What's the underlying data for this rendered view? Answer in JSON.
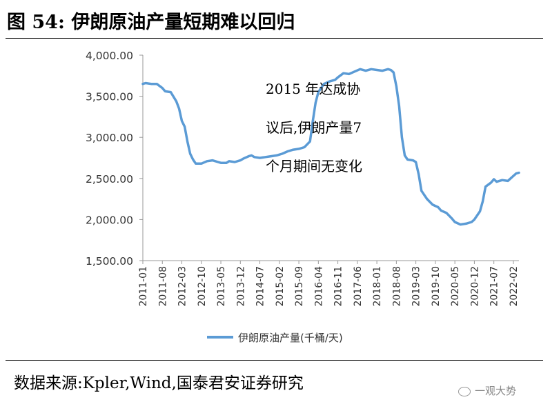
{
  "header": {
    "title": "图 54:  伊朗原油产量短期难以回归"
  },
  "footer": {
    "source": "数据来源:Kpler,Wind,国泰君安证券研究",
    "watermark": "一观大势",
    "watermark_icon": "wechat-icon"
  },
  "annotation": [
    "2015  年达成协",
    "议后,伊朗产量7",
    "个月期间无变化"
  ],
  "chart_data": {
    "type": "line",
    "color": "#5b9bd5",
    "ylim": [
      1500,
      4000
    ],
    "yticks": [
      1500,
      2000,
      2500,
      3000,
      3500,
      4000
    ],
    "ytick_labels": [
      "1,500.00",
      "2,000.00",
      "2,500.00",
      "3,000.00",
      "3,500.00",
      "4,000.00"
    ],
    "xtick_labels": [
      "2011-01",
      "2011-08",
      "2012-03",
      "2012-10",
      "2013-05",
      "2013-12",
      "2014-07",
      "2015-02",
      "2015-09",
      "2016-04",
      "2016-11",
      "2017-06",
      "2018-01",
      "2018-08",
      "2019-03",
      "2019-10",
      "2020-05",
      "2020-12",
      "2021-07",
      "2022-02"
    ],
    "x_start": "2011-01",
    "x_end": "2022-04",
    "series": [
      {
        "name": "伊朗原油产量(千桶/天)",
        "points": [
          [
            "2011-01",
            3650
          ],
          [
            "2011-02",
            3660
          ],
          [
            "2011-04",
            3650
          ],
          [
            "2011-06",
            3650
          ],
          [
            "2011-08",
            3600
          ],
          [
            "2011-09",
            3560
          ],
          [
            "2011-11",
            3550
          ],
          [
            "2012-01",
            3440
          ],
          [
            "2012-02",
            3350
          ],
          [
            "2012-03",
            3200
          ],
          [
            "2012-04",
            3130
          ],
          [
            "2012-05",
            2950
          ],
          [
            "2012-06",
            2800
          ],
          [
            "2012-07",
            2730
          ],
          [
            "2012-08",
            2680
          ],
          [
            "2012-10",
            2680
          ],
          [
            "2012-12",
            2710
          ],
          [
            "2013-02",
            2720
          ],
          [
            "2013-04",
            2700
          ],
          [
            "2013-05",
            2690
          ],
          [
            "2013-07",
            2690
          ],
          [
            "2013-08",
            2710
          ],
          [
            "2013-10",
            2700
          ],
          [
            "2013-12",
            2720
          ],
          [
            "2014-01",
            2740
          ],
          [
            "2014-03",
            2770
          ],
          [
            "2014-04",
            2780
          ],
          [
            "2014-05",
            2760
          ],
          [
            "2014-07",
            2750
          ],
          [
            "2014-09",
            2760
          ],
          [
            "2014-11",
            2770
          ],
          [
            "2015-01",
            2780
          ],
          [
            "2015-03",
            2800
          ],
          [
            "2015-05",
            2830
          ],
          [
            "2015-07",
            2850
          ],
          [
            "2015-09",
            2860
          ],
          [
            "2015-11",
            2880
          ],
          [
            "2016-01",
            2950
          ],
          [
            "2016-02",
            3200
          ],
          [
            "2016-03",
            3420
          ],
          [
            "2016-04",
            3550
          ],
          [
            "2016-06",
            3650
          ],
          [
            "2016-08",
            3680
          ],
          [
            "2016-10",
            3700
          ],
          [
            "2016-11",
            3730
          ],
          [
            "2017-01",
            3780
          ],
          [
            "2017-03",
            3770
          ],
          [
            "2017-05",
            3800
          ],
          [
            "2017-07",
            3830
          ],
          [
            "2017-09",
            3810
          ],
          [
            "2017-11",
            3830
          ],
          [
            "2018-01",
            3820
          ],
          [
            "2018-03",
            3810
          ],
          [
            "2018-05",
            3830
          ],
          [
            "2018-06",
            3820
          ],
          [
            "2018-07",
            3790
          ],
          [
            "2018-08",
            3620
          ],
          [
            "2018-09",
            3380
          ],
          [
            "2018-10",
            3000
          ],
          [
            "2018-11",
            2780
          ],
          [
            "2018-12",
            2730
          ],
          [
            "2019-02",
            2720
          ],
          [
            "2019-03",
            2700
          ],
          [
            "2019-04",
            2550
          ],
          [
            "2019-05",
            2350
          ],
          [
            "2019-07",
            2250
          ],
          [
            "2019-09",
            2180
          ],
          [
            "2019-11",
            2150
          ],
          [
            "2019-12",
            2110
          ],
          [
            "2020-02",
            2080
          ],
          [
            "2020-04",
            2010
          ],
          [
            "2020-05",
            1970
          ],
          [
            "2020-07",
            1940
          ],
          [
            "2020-09",
            1950
          ],
          [
            "2020-11",
            1970
          ],
          [
            "2020-12",
            2000
          ],
          [
            "2021-02",
            2100
          ],
          [
            "2021-03",
            2220
          ],
          [
            "2021-04",
            2400
          ],
          [
            "2021-06",
            2450
          ],
          [
            "2021-07",
            2490
          ],
          [
            "2021-08",
            2460
          ],
          [
            "2021-10",
            2480
          ],
          [
            "2021-12",
            2470
          ],
          [
            "2022-01",
            2500
          ],
          [
            "2022-02",
            2530
          ],
          [
            "2022-03",
            2560
          ],
          [
            "2022-04",
            2570
          ]
        ]
      }
    ]
  }
}
